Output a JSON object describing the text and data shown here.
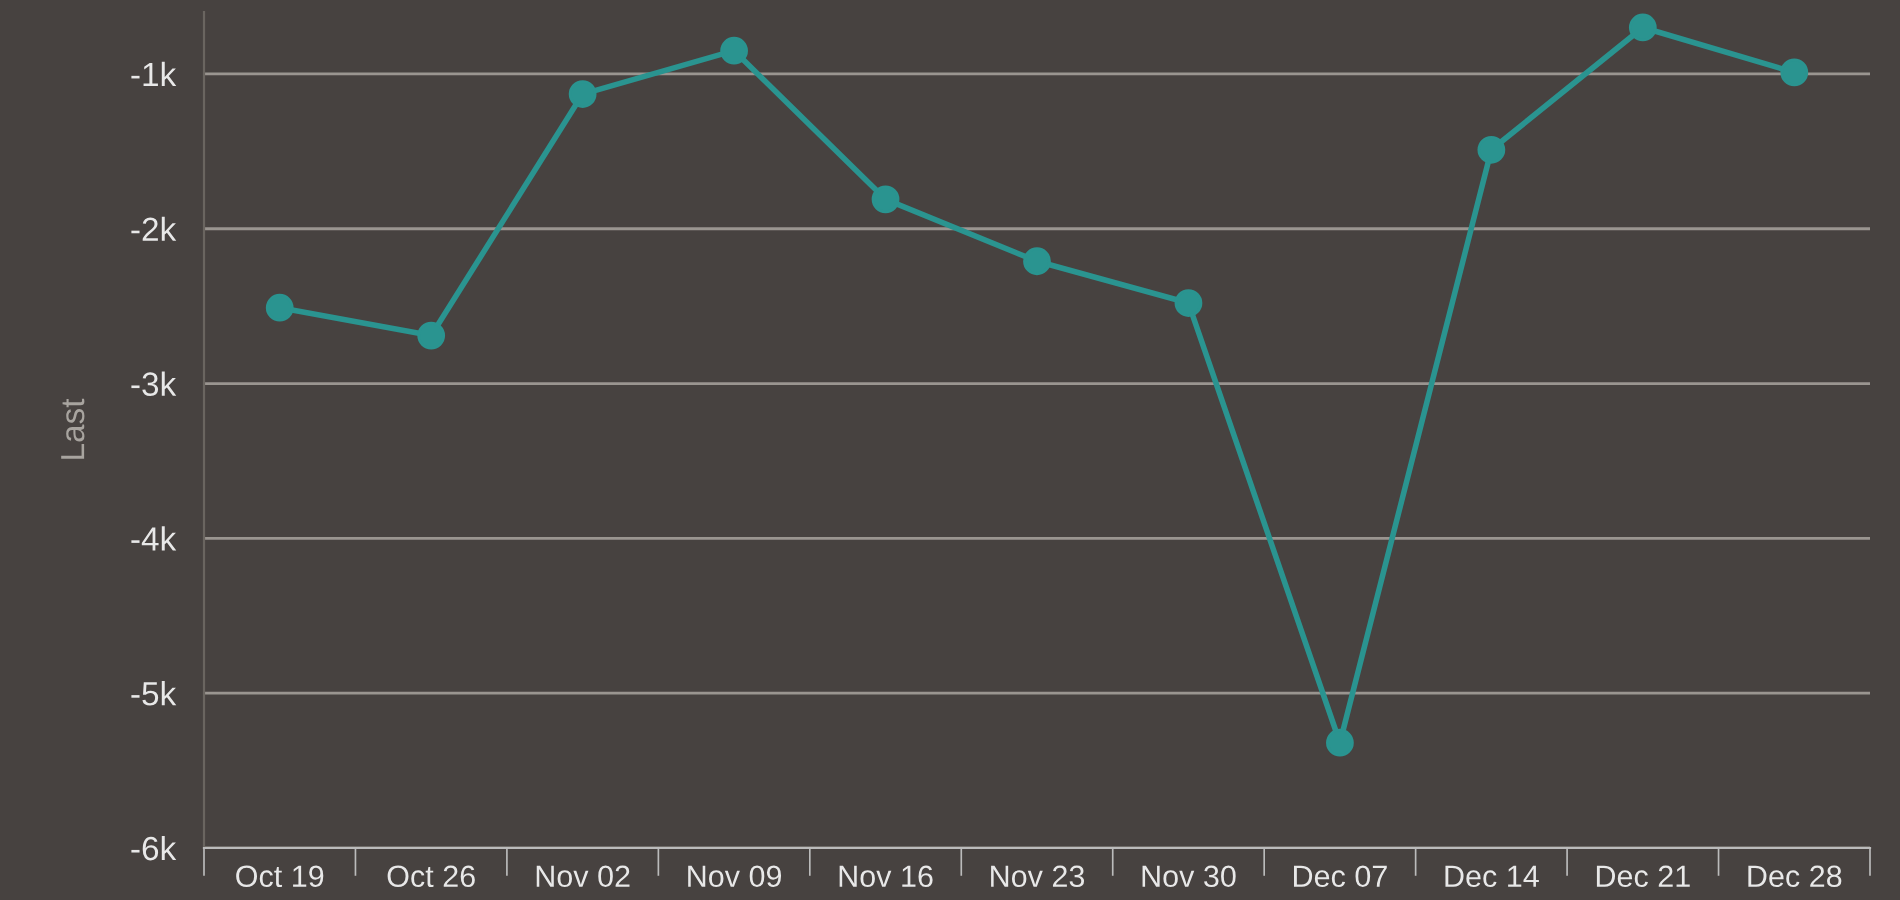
{
  "chart_data": {
    "type": "line",
    "ylabel": "Last",
    "categories": [
      "Oct 19",
      "Oct 26",
      "Nov 02",
      "Nov 09",
      "Nov 16",
      "Nov 23",
      "Nov 30",
      "Dec 07",
      "Dec 14",
      "Dec 21",
      "Dec 28"
    ],
    "series": [
      {
        "color": "#2a9490",
        "values": [
          -2510,
          -2690,
          -1130,
          -850,
          -1810,
          -2210,
          -2480,
          -5320,
          -1490,
          -700,
          -990
        ]
      }
    ],
    "ylim": [
      -6000,
      -600
    ],
    "yticks": [
      {
        "value": -6000,
        "label": "-6k"
      },
      {
        "value": -5000,
        "label": "-5k"
      },
      {
        "value": -4000,
        "label": "-4k"
      },
      {
        "value": -3000,
        "label": "-3k"
      },
      {
        "value": -2000,
        "label": "-2k"
      },
      {
        "value": -1000,
        "label": "-1k"
      }
    ],
    "grid": "y",
    "marker": "circle",
    "line_style": "solid"
  }
}
